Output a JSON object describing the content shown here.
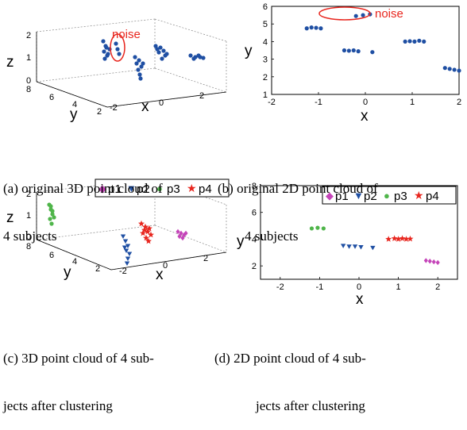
{
  "figure": {
    "noise_label": "noise",
    "colors": {
      "points": "#1f4fa3",
      "noise": "#e8261e",
      "p1": "#c545b9",
      "p2": "#1f4fa3",
      "p3": "#4fb54a",
      "p4": "#e8261e"
    }
  },
  "captions": {
    "a_line1": "(a) original 3D point cloud of",
    "a_line2": "4 subjects",
    "b_line1": "(b) original 2D point cloud of",
    "b_line2": "4 subjects",
    "c_line1": "(c) 3D point cloud of 4 sub-",
    "c_line2": "jects after clustering",
    "d_line1": "(d) 2D point cloud of 4 sub-",
    "d_line2": "jects after clustering"
  },
  "legend": {
    "p1": "p1",
    "p2": "p2",
    "p3": "p3",
    "p4": "p4"
  },
  "chart_data": [
    {
      "id": "a",
      "type": "scatter",
      "dimensions": 3,
      "xlabel": "x",
      "ylabel": "y",
      "zlabel": "z",
      "x_ticks": [
        "-2",
        "0",
        "2"
      ],
      "y_ticks": [
        "8",
        "6",
        "4",
        "2"
      ],
      "z_ticks": [
        "0",
        "1",
        "2"
      ],
      "annotation": "noise"
    },
    {
      "id": "b",
      "type": "scatter",
      "xlabel": "x",
      "ylabel": "y",
      "xlim": [
        -2,
        2
      ],
      "ylim": [
        1,
        6
      ],
      "x_ticks": [
        "-2",
        "-1",
        "0",
        "1",
        "2"
      ],
      "y_ticks": [
        "1",
        "2",
        "3",
        "4",
        "5",
        "6"
      ],
      "annotation": "noise",
      "series": [
        {
          "values": [
            [
              -1.25,
              4.75
            ],
            [
              -1.15,
              4.8
            ],
            [
              -1.05,
              4.78
            ],
            [
              -0.95,
              4.75
            ],
            [
              -0.45,
              3.5
            ],
            [
              -0.35,
              3.48
            ],
            [
              -0.25,
              3.5
            ],
            [
              -0.15,
              3.45
            ],
            [
              0.15,
              3.4
            ],
            [
              0.85,
              4.0
            ],
            [
              0.95,
              4.02
            ],
            [
              1.05,
              4.0
            ],
            [
              1.15,
              4.05
            ],
            [
              1.25,
              4.0
            ],
            [
              1.7,
              2.5
            ],
            [
              1.8,
              2.45
            ],
            [
              1.9,
              2.4
            ],
            [
              2.0,
              2.35
            ],
            [
              -0.2,
              5.45
            ],
            [
              -0.05,
              5.5
            ],
            [
              0.1,
              5.55
            ]
          ]
        }
      ]
    },
    {
      "id": "c",
      "type": "scatter",
      "dimensions": 3,
      "xlabel": "x",
      "ylabel": "y",
      "zlabel": "z",
      "x_ticks": [
        "-2",
        "0",
        "2"
      ],
      "y_ticks": [
        "8",
        "6",
        "4",
        "2"
      ],
      "z_ticks": [
        "0",
        "1",
        "2"
      ],
      "series": [
        {
          "name": "p1"
        },
        {
          "name": "p2"
        },
        {
          "name": "p3"
        },
        {
          "name": "p4"
        }
      ]
    },
    {
      "id": "d",
      "type": "scatter",
      "xlabel": "x",
      "ylabel": "y",
      "xlim": [
        -2.5,
        2.5
      ],
      "ylim": [
        1,
        8
      ],
      "x_ticks": [
        "-2",
        "-1",
        "0",
        "1",
        "2"
      ],
      "y_ticks": [
        "2",
        "4",
        "6",
        "8"
      ],
      "series": [
        {
          "name": "p1",
          "values": [
            [
              1.7,
              2.4
            ],
            [
              1.8,
              2.35
            ],
            [
              1.9,
              2.3
            ],
            [
              2.0,
              2.25
            ]
          ]
        },
        {
          "name": "p2",
          "values": [
            [
              -0.4,
              3.5
            ],
            [
              -0.25,
              3.45
            ],
            [
              -0.1,
              3.45
            ],
            [
              0.05,
              3.4
            ],
            [
              0.35,
              3.35
            ]
          ]
        },
        {
          "name": "p3",
          "values": [
            [
              -1.2,
              4.8
            ],
            [
              -1.05,
              4.85
            ],
            [
              -0.9,
              4.8
            ]
          ]
        },
        {
          "name": "p4",
          "values": [
            [
              0.75,
              4.0
            ],
            [
              0.9,
              4.05
            ],
            [
              1.0,
              4.0
            ],
            [
              1.1,
              4.05
            ],
            [
              1.2,
              4.0
            ],
            [
              1.3,
              4.02
            ]
          ]
        }
      ]
    }
  ]
}
